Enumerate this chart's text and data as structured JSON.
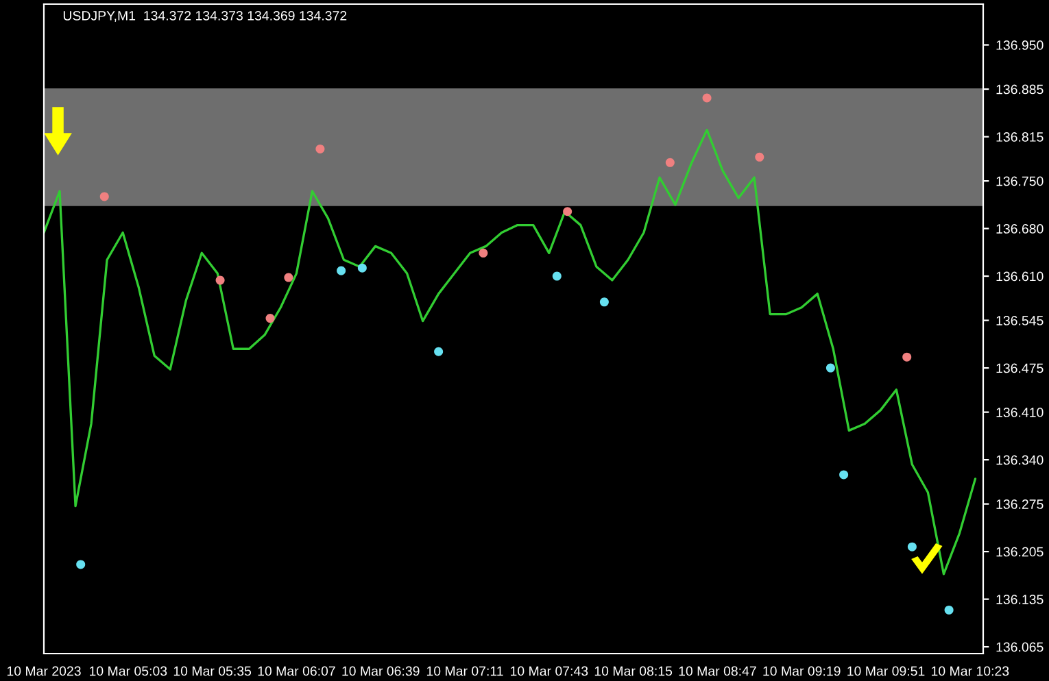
{
  "chart_data": {
    "type": "line",
    "title": "USDJPY,M1  134.372 134.373 134.369 134.372",
    "xlim": [
      "2023-03-10T04:31",
      "2023-03-10T10:28"
    ],
    "ylim": [
      136.055,
      137.01
    ],
    "xticks": [
      {
        "value": "2023-03-10T04:31",
        "label": "10 Mar 2023"
      },
      {
        "value": "2023-03-10T05:03",
        "label": "10 Mar 05:03"
      },
      {
        "value": "2023-03-10T05:35",
        "label": "10 Mar 05:35"
      },
      {
        "value": "2023-03-10T06:07",
        "label": "10 Mar 06:07"
      },
      {
        "value": "2023-03-10T06:39",
        "label": "10 Mar 06:39"
      },
      {
        "value": "2023-03-10T07:11",
        "label": "10 Mar 07:11"
      },
      {
        "value": "2023-03-10T07:43",
        "label": "10 Mar 07:43"
      },
      {
        "value": "2023-03-10T08:15",
        "label": "10 Mar 08:15"
      },
      {
        "value": "2023-03-10T08:47",
        "label": "10 Mar 08:47"
      },
      {
        "value": "2023-03-10T09:19",
        "label": "10 Mar 09:19"
      },
      {
        "value": "2023-03-10T09:51",
        "label": "10 Mar 09:51"
      },
      {
        "value": "2023-03-10T10:23",
        "label": "10 Mar 10:23"
      }
    ],
    "yticks": [
      {
        "value": 136.95,
        "label": "136.950"
      },
      136.885,
      136.815,
      {
        "value": 136.75,
        "label": "136.750"
      },
      {
        "value": 136.68,
        "label": "136.680"
      },
      {
        "value": 136.61,
        "label": "136.610"
      },
      136.545,
      136.475,
      {
        "value": 136.41,
        "label": "136.410"
      },
      {
        "value": 136.34,
        "label": "136.340"
      },
      136.275,
      136.205,
      136.135,
      136.065
    ],
    "grid": false,
    "legend": false,
    "bands": [
      {
        "axis": "y",
        "from": 136.713,
        "to": 136.886,
        "color": "#6e6e6e"
      }
    ],
    "series": [
      {
        "color": "#32cd32",
        "x": [
          "2023-03-10T04:31",
          "2023-03-10T04:37",
          "2023-03-10T04:43",
          "2023-03-10T04:49",
          "2023-03-10T04:55",
          "2023-03-10T05:01",
          "2023-03-10T05:07",
          "2023-03-10T05:13",
          "2023-03-10T05:19",
          "2023-03-10T05:25",
          "2023-03-10T05:31",
          "2023-03-10T05:37",
          "2023-03-10T05:43",
          "2023-03-10T05:49",
          "2023-03-10T05:55",
          "2023-03-10T06:01",
          "2023-03-10T06:07",
          "2023-03-10T06:13",
          "2023-03-10T06:19",
          "2023-03-10T06:25",
          "2023-03-10T06:31",
          "2023-03-10T06:37",
          "2023-03-10T06:43",
          "2023-03-10T06:49",
          "2023-03-10T06:55",
          "2023-03-10T07:01",
          "2023-03-10T07:07",
          "2023-03-10T07:13",
          "2023-03-10T07:19",
          "2023-03-10T07:25",
          "2023-03-10T07:31",
          "2023-03-10T07:37",
          "2023-03-10T07:43",
          "2023-03-10T07:49",
          "2023-03-10T07:55",
          "2023-03-10T08:01",
          "2023-03-10T08:07",
          "2023-03-10T08:13",
          "2023-03-10T08:19",
          "2023-03-10T08:25",
          "2023-03-10T08:31",
          "2023-03-10T08:37",
          "2023-03-10T08:43",
          "2023-03-10T08:49",
          "2023-03-10T08:55",
          "2023-03-10T09:01",
          "2023-03-10T09:07",
          "2023-03-10T09:13",
          "2023-03-10T09:19",
          "2023-03-10T09:25",
          "2023-03-10T09:31",
          "2023-03-10T09:37",
          "2023-03-10T09:43",
          "2023-03-10T09:49",
          "2023-03-10T09:55",
          "2023-03-10T10:01",
          "2023-03-10T10:07",
          "2023-03-10T10:13",
          "2023-03-10T10:19",
          "2023-03-10T10:25"
        ],
        "values": [
          136.674,
          136.735,
          136.272,
          136.393,
          136.634,
          136.674,
          136.594,
          136.493,
          136.473,
          136.574,
          136.644,
          136.614,
          136.503,
          136.503,
          136.524,
          136.564,
          136.614,
          136.735,
          136.695,
          136.634,
          136.624,
          136.654,
          136.644,
          136.614,
          136.544,
          136.584,
          136.614,
          136.644,
          136.654,
          136.674,
          136.685,
          136.685,
          136.644,
          136.705,
          136.685,
          136.624,
          136.604,
          136.634,
          136.674,
          136.755,
          136.715,
          136.775,
          136.825,
          136.765,
          136.725,
          136.755,
          136.554,
          136.554,
          136.564,
          136.584,
          136.503,
          136.383,
          136.393,
          136.413,
          136.443,
          136.333,
          136.292,
          136.172,
          136.232,
          136.312
        ]
      },
      {
        "type": "scatter",
        "marker": "circle",
        "color": "#f08080",
        "x": [
          "2023-03-10T04:54",
          "2023-03-10T05:38",
          "2023-03-10T05:57",
          "2023-03-10T06:16",
          "2023-03-10T07:18",
          "2023-03-10T07:50",
          "2023-03-10T08:29",
          "2023-03-10T08:43",
          "2023-03-10T06:04",
          "2023-03-10T09:03",
          "2023-03-10T09:59"
        ],
        "values": [
          136.727,
          136.604,
          136.548,
          136.797,
          136.644,
          136.705,
          136.777,
          136.872,
          136.608,
          136.785,
          136.491
        ]
      },
      {
        "type": "scatter",
        "marker": "circle",
        "color": "#66e0f0",
        "x": [
          "2023-03-10T04:45",
          "2023-03-10T06:32",
          "2023-03-10T07:01",
          "2023-03-10T07:46",
          "2023-03-10T09:35",
          "2023-03-10T10:01",
          "2023-03-10T10:15",
          "2023-03-10T06:24",
          "2023-03-10T08:04",
          "2023-03-10T09:30"
        ],
        "values": [
          136.186,
          136.622,
          136.499,
          136.61,
          136.318,
          136.212,
          136.119,
          136.618,
          136.572,
          136.475
        ]
      }
    ]
  }
}
